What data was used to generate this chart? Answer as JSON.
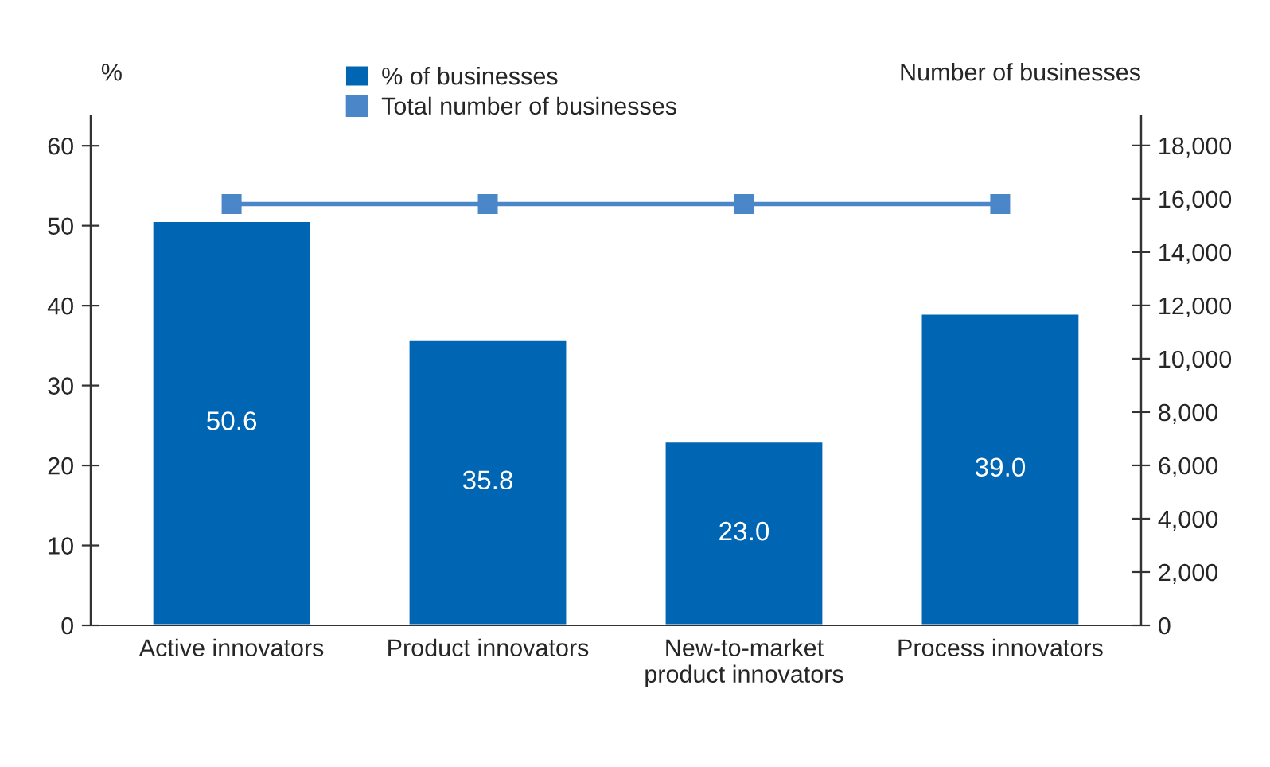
{
  "chart_data": {
    "type": "bar",
    "ylabel": "%",
    "y2label": "Number of businesses",
    "categories": [
      "Active innovators",
      "Product innovators",
      "New-to-market\nproduct innovators",
      "Process innovators"
    ],
    "series": [
      {
        "name": "% of businesses",
        "color": "#0066b3",
        "values": [
          50.6,
          35.8,
          23.0,
          39.0
        ],
        "value_labels": [
          "50.6",
          "35.8",
          "23.0",
          "39.0"
        ]
      },
      {
        "name": "Total number of businesses",
        "type": "line",
        "axis": "y2",
        "color": "#4a86c8",
        "marker": "square",
        "values": [
          15800,
          15800,
          15800,
          15800
        ]
      }
    ],
    "ylim": [
      0,
      63.7
    ],
    "yticks": [
      0,
      10,
      20,
      30,
      40,
      50,
      60
    ],
    "y2lim": [
      0,
      19100
    ],
    "y2ticks": [
      {
        "value": 0,
        "label": "0"
      },
      {
        "value": 2000,
        "label": "2,000"
      },
      {
        "value": 4000,
        "label": "4,000"
      },
      {
        "value": 6000,
        "label": "6,000"
      },
      {
        "value": 8000,
        "label": "8,000"
      },
      {
        "value": 10000,
        "label": "10,000"
      },
      {
        "value": 12000,
        "label": "12,000"
      },
      {
        "value": 14000,
        "label": "14,000"
      },
      {
        "value": 16000,
        "label": "16,000"
      },
      {
        "value": 18000,
        "label": "18,000"
      }
    ],
    "grid": false,
    "legend": "top"
  }
}
